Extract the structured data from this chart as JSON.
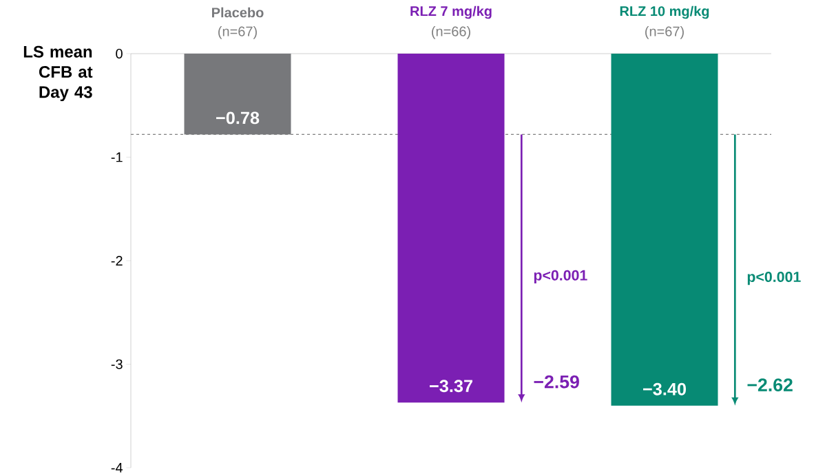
{
  "chart_data": {
    "type": "bar",
    "ylabel": "LS mean CFB at Day 43",
    "categories": [
      "Placebo",
      "RLZ 7 mg/kg",
      "RLZ 10 mg/kg"
    ],
    "values": [
      -0.78,
      -3.37,
      -3.4
    ],
    "colors": [
      "#77787b",
      "#7b1fb3",
      "#078a74"
    ],
    "value_labels": [
      "−0.78",
      "−3.37",
      "−3.40"
    ],
    "ylim": [
      -4,
      0
    ],
    "yticks": [
      0,
      -1,
      -2,
      -3,
      -4
    ],
    "ref_lines": [
      {
        "axis": "y",
        "value": -0.78,
        "color": "#808080",
        "line_style": "dashed"
      }
    ],
    "annotations": [
      "(n=67)",
      "(n=66)",
      "(n=67)",
      "p<0.001",
      "−2.59",
      "p<0.001",
      "−2.62"
    ],
    "grid": false
  }
}
